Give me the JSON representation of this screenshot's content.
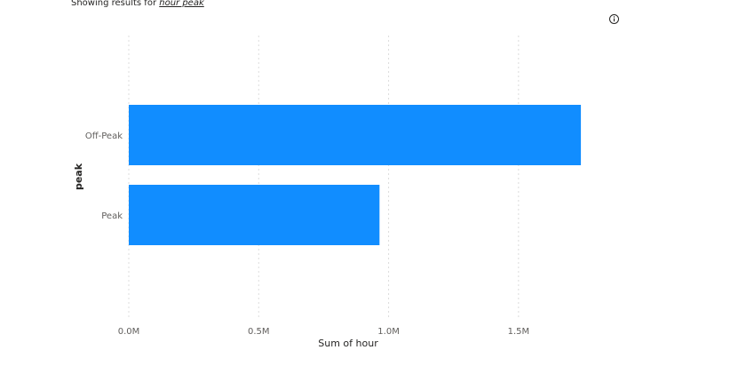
{
  "header": {
    "results_prefix": "Showing results for",
    "query": "hour peak"
  },
  "icons": {
    "info": "info-icon"
  },
  "chart_data": {
    "type": "bar",
    "orientation": "horizontal",
    "categories": [
      "Off-Peak",
      "Peak"
    ],
    "series": [
      {
        "values": [
          1740000,
          965000
        ]
      }
    ],
    "xlabel": "Sum of hour",
    "ylabel": "peak",
    "xlim": [
      0,
      1750000
    ],
    "xticks": [
      0,
      500000,
      1000000,
      1500000
    ],
    "xtick_labels": [
      "0.0M",
      "0.5M",
      "1.0M",
      "1.5M"
    ],
    "grid": true,
    "bar_color": "#118DFF",
    "gridline_color": "#dcdcdc"
  }
}
